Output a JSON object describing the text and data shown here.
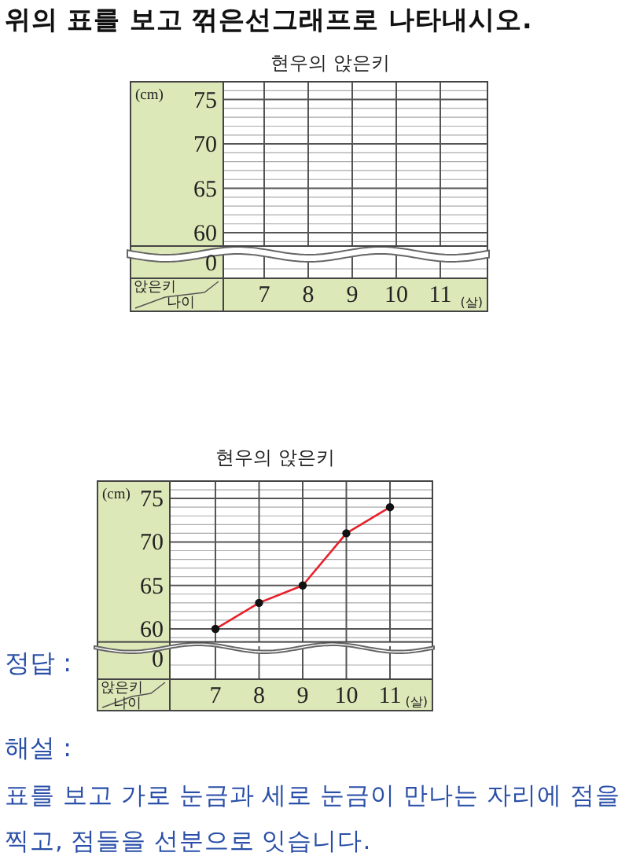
{
  "chart_data": [
    {
      "type": "line",
      "title": "현우의 앉은키",
      "xlabel": "(살)",
      "ylabel": "(cm)",
      "categories": [
        "7",
        "8",
        "9",
        "10",
        "11"
      ],
      "series": [
        {
          "values": [
            null,
            null,
            null,
            null,
            null
          ],
          "color": "#e8202a"
        }
      ],
      "ylim": [
        58.5,
        77
      ],
      "yticks": [
        60,
        65,
        70,
        75
      ],
      "grid": true,
      "annotations": [
        "위의 표를 보고 꺾은선그래프로 나타내시오.",
        "앉은키",
        "나이",
        "0"
      ]
    },
    {
      "type": "line",
      "title": "현우의 앉은키",
      "xlabel": "(살)",
      "ylabel": "(cm)",
      "categories": [
        "7",
        "8",
        "9",
        "10",
        "11"
      ],
      "series": [
        {
          "values": [
            60,
            63,
            65,
            71,
            74
          ],
          "color": "#e8202a"
        }
      ],
      "ylim": [
        58.5,
        77
      ],
      "yticks": [
        60,
        65,
        70,
        75
      ],
      "grid": true,
      "marker": "circle",
      "annotations": [
        "0",
        "앉은키",
        "나이",
        "정답 :",
        "해설 :",
        "표를 보고 가로 눈금과 세로 눈금이 만나는 자리에 점을 찍고, 점들을 선분으로 잇습니다."
      ]
    }
  ]
}
